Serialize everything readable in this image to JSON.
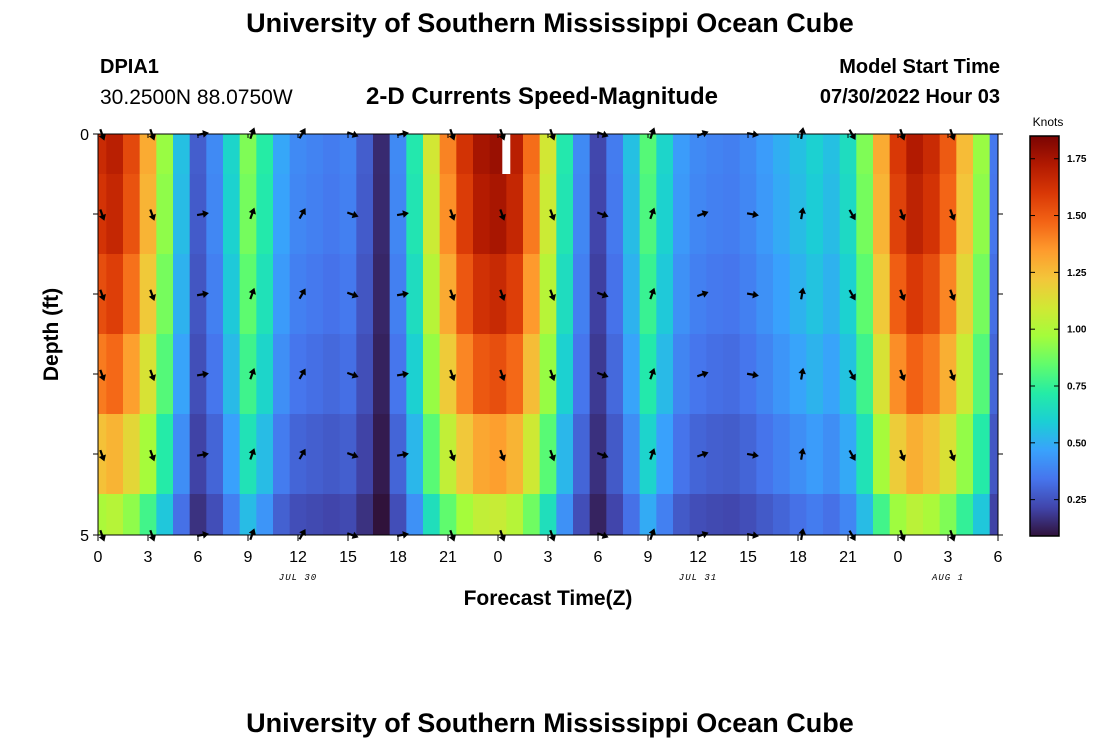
{
  "header": {
    "title": "University of Southern Mississippi Ocean Cube",
    "station": "DPIA1",
    "coords": "30.2500N  88.0750W",
    "subtitle": "2-D Currents Speed-Magnitude",
    "model_start_label": "Model Start Time",
    "model_start_value": "07/30/2022 Hour 03"
  },
  "footer": {
    "title": "University of Southern Mississippi Ocean Cube"
  },
  "chart_data": {
    "type": "heatmap",
    "title": "2-D Currents Speed-Magnitude",
    "xlabel": "Forecast Time(Z)",
    "ylabel": "Depth (ft)",
    "x_ticks": [
      "0",
      "3",
      "6",
      "9",
      "12",
      "15",
      "18",
      "21",
      "0",
      "3",
      "6",
      "9",
      "12",
      "15",
      "18",
      "21",
      "0",
      "3",
      "6"
    ],
    "x_tick_hours": [
      0,
      3,
      6,
      9,
      12,
      15,
      18,
      21,
      24,
      27,
      30,
      33,
      36,
      39,
      42,
      45,
      48,
      51,
      54
    ],
    "x_range_hours": [
      0,
      54
    ],
    "date_labels": [
      {
        "text": "JUL 30",
        "hour": 12
      },
      {
        "text": "JUL 31",
        "hour": 36
      },
      {
        "text": "AUG 1",
        "hour": 51
      }
    ],
    "y_ticks": [
      "0",
      "5"
    ],
    "y_range": [
      0,
      5
    ],
    "depth_levels": [
      0,
      1,
      2,
      3,
      4,
      5
    ],
    "colorbar": {
      "label": "Knots",
      "ticks": [
        "1.75",
        "1.50",
        "1.25",
        "1.00",
        "0.75",
        "0.50",
        "0.25"
      ],
      "tick_values": [
        1.75,
        1.5,
        1.25,
        1.0,
        0.75,
        0.5,
        0.25
      ],
      "range": [
        0.09,
        1.85
      ],
      "colors": [
        "#30123b",
        "#4145ab",
        "#4675ed",
        "#39a2fc",
        "#1bcfd4",
        "#24eca6",
        "#61fc6c",
        "#a4fc3b",
        "#d1e834",
        "#f3c63a",
        "#fe9b2d",
        "#f36315",
        "#d93806",
        "#b11901",
        "#7a0403"
      ]
    },
    "speed_profile_hours": [
      0,
      1,
      2,
      3,
      4,
      5,
      6,
      7,
      8,
      9,
      10,
      11,
      12,
      13,
      14,
      15,
      16,
      17,
      18,
      19,
      20,
      21,
      22,
      23,
      24,
      25,
      26,
      27,
      28,
      29,
      30,
      31,
      32,
      33,
      34,
      35,
      36,
      37,
      38,
      39,
      40,
      41,
      42,
      43,
      44,
      45,
      46,
      47,
      48,
      49,
      50,
      51,
      52,
      53,
      54
    ],
    "speed_profile_knots": [
      1.65,
      1.7,
      1.55,
      1.3,
      0.95,
      0.55,
      0.28,
      0.4,
      0.62,
      0.9,
      0.72,
      0.48,
      0.4,
      0.38,
      0.36,
      0.38,
      0.28,
      0.15,
      0.4,
      0.7,
      1.1,
      1.4,
      1.62,
      1.75,
      1.78,
      1.7,
      1.45,
      1.1,
      0.7,
      0.4,
      0.22,
      0.36,
      0.55,
      0.82,
      0.62,
      0.45,
      0.4,
      0.38,
      0.37,
      0.4,
      0.45,
      0.5,
      0.55,
      0.6,
      0.55,
      0.65,
      0.9,
      1.3,
      1.6,
      1.72,
      1.65,
      1.5,
      1.25,
      0.95,
      0.35
    ],
    "depth_factor": [
      1.0,
      0.98,
      0.93,
      0.86,
      0.75,
      0.6
    ],
    "arrow_hours": [
      0,
      3,
      6,
      9,
      12,
      15,
      18,
      21,
      24,
      27,
      30,
      33,
      36,
      39,
      42,
      45,
      48,
      51
    ],
    "arrow_depths": [
      0,
      1,
      2,
      3,
      4,
      5
    ],
    "arrow_directions_deg": [
      160,
      160,
      80,
      20,
      30,
      110,
      80,
      160,
      160,
      160,
      110,
      20,
      70,
      100,
      10,
      150,
      160,
      160
    ],
    "missing_cells": [
      {
        "hour": 24.5,
        "depth": 0
      }
    ]
  }
}
